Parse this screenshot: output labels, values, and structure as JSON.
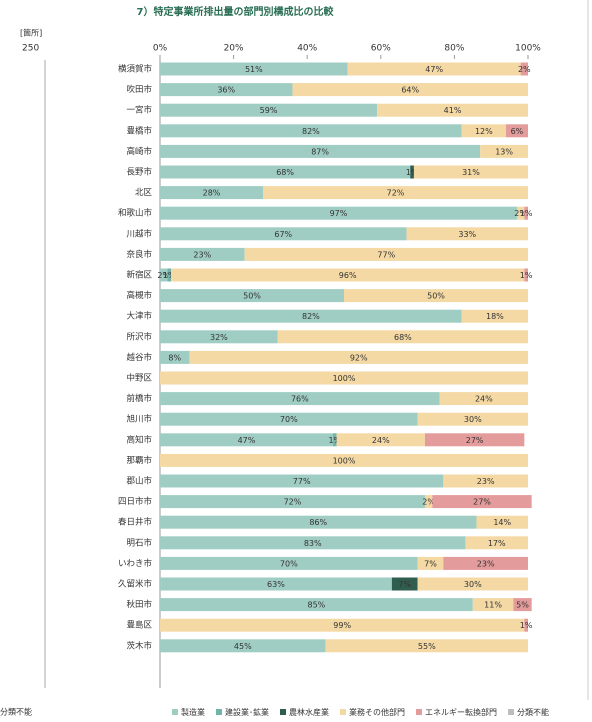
{
  "chart_data": {
    "type": "stacked-bar-horizontal",
    "title": "7）特定事業所排出量の部門別構成比の比較",
    "side_fragment": {
      "unit": "[箇所]",
      "tick": "250",
      "legend": "分類不能"
    },
    "categories": [
      "横須賀市",
      "吹田市",
      "一宮市",
      "豊橋市",
      "高崎市",
      "長野市",
      "北区",
      "和歌山市",
      "川越市",
      "奈良市",
      "新宿区",
      "高槻市",
      "大津市",
      "所沢市",
      "越谷市",
      "中野区",
      "前橋市",
      "旭川市",
      "高知市",
      "那覇市",
      "郡山市",
      "四日市市",
      "春日井市",
      "明石市",
      "いわき市",
      "久留米市",
      "秋田市",
      "豊島区",
      "茨木市"
    ],
    "xlim": [
      0,
      100
    ],
    "xticks": [
      {
        "value": 0,
        "label": "0%"
      },
      {
        "value": 20,
        "label": "20%"
      },
      {
        "value": 40,
        "label": "40%"
      },
      {
        "value": 60,
        "label": "60%"
      },
      {
        "value": 80,
        "label": "80%"
      },
      {
        "value": 100,
        "label": "100%"
      }
    ],
    "legend_position": "bottom",
    "series": [
      {
        "name": "製造業",
        "color": "#9fcdc3",
        "values": [
          51,
          36,
          59,
          82,
          87,
          68,
          28,
          97,
          67,
          23,
          2,
          50,
          82,
          32,
          8,
          0,
          76,
          70,
          47,
          0,
          77,
          72,
          86,
          83,
          70,
          63,
          85,
          0,
          45
        ],
        "value_labels": [
          "51%",
          "36%",
          "59%",
          "82%",
          "87%",
          "68%",
          "28%",
          "97%",
          "67%",
          "23%",
          "2%",
          "50%",
          "82%",
          "32%",
          "8%",
          null,
          "76%",
          "70%",
          "47%",
          null,
          "77%",
          "72%",
          "86%",
          "83%",
          "70%",
          "63%",
          "85%",
          null,
          "45%"
        ]
      },
      {
        "name": "建設業･鉱業",
        "color": "#74b3a8",
        "values": [
          0,
          0,
          0,
          0,
          0,
          0,
          0,
          0,
          0,
          0,
          1,
          0,
          0,
          0,
          0,
          0,
          0,
          0,
          1,
          0,
          0,
          0,
          0,
          0,
          0,
          0,
          0,
          0,
          0
        ],
        "value_labels": [
          null,
          null,
          null,
          null,
          null,
          null,
          null,
          null,
          null,
          null,
          "1%",
          null,
          null,
          null,
          null,
          null,
          null,
          null,
          "1%",
          null,
          null,
          null,
          null,
          null,
          null,
          null,
          null,
          null,
          null
        ]
      },
      {
        "name": "農林水産業",
        "color": "#2f5e4f",
        "values": [
          0,
          0,
          0,
          0,
          0,
          1,
          0,
          0,
          0,
          0,
          0,
          0,
          0,
          0,
          0,
          0,
          0,
          0,
          0,
          0,
          0,
          0,
          0,
          0,
          0,
          7,
          0,
          0,
          0
        ],
        "value_labels": [
          null,
          null,
          null,
          null,
          null,
          "1%",
          null,
          null,
          null,
          null,
          null,
          null,
          null,
          null,
          null,
          null,
          null,
          null,
          null,
          null,
          null,
          null,
          null,
          null,
          null,
          "7%",
          null,
          null,
          null
        ]
      },
      {
        "name": "業務その他部門",
        "color": "#f4d9a4",
        "values": [
          47,
          64,
          41,
          12,
          13,
          31,
          72,
          2,
          33,
          77,
          96,
          50,
          18,
          68,
          92,
          100,
          24,
          30,
          24,
          100,
          23,
          2,
          14,
          17,
          7,
          30,
          11,
          99,
          55
        ],
        "value_labels": [
          "47%",
          "64%",
          "41%",
          "12%",
          "13%",
          "31%",
          "72%",
          "2%",
          "33%",
          "77%",
          "96%",
          "50%",
          "18%",
          "68%",
          "92%",
          "100%",
          "24%",
          "30%",
          "24%",
          "100%",
          "23%",
          "2%",
          "14%",
          "17%",
          "7%",
          "30%",
          "11%",
          "99%",
          "55%"
        ]
      },
      {
        "name": "エネルギー転換部門",
        "color": "#e39b9b",
        "values": [
          2,
          0,
          0,
          6,
          0,
          0,
          0,
          1,
          0,
          0,
          1,
          0,
          0,
          0,
          0,
          0,
          0,
          0,
          27,
          0,
          0,
          27,
          0,
          0,
          23,
          0,
          5,
          1,
          0
        ],
        "value_labels": [
          "2%",
          null,
          null,
          "6%",
          null,
          null,
          null,
          "1%",
          null,
          null,
          "1%",
          null,
          null,
          null,
          null,
          null,
          null,
          null,
          "27%",
          null,
          null,
          "27%",
          null,
          null,
          "23%",
          null,
          "5%",
          "1%",
          null
        ]
      },
      {
        "name": "分類不能",
        "color": "#bdbdbd",
        "values": [
          0,
          0,
          0,
          0,
          0,
          0,
          0,
          0,
          0,
          0,
          0,
          0,
          0,
          0,
          0,
          0,
          0,
          0,
          0,
          0,
          0,
          0,
          0,
          0,
          0,
          0,
          0,
          0,
          0
        ],
        "value_labels": [
          null,
          null,
          null,
          null,
          null,
          null,
          null,
          null,
          null,
          null,
          null,
          null,
          null,
          null,
          null,
          null,
          null,
          null,
          null,
          null,
          null,
          null,
          null,
          null,
          null,
          null,
          null,
          null,
          null
        ]
      }
    ]
  }
}
